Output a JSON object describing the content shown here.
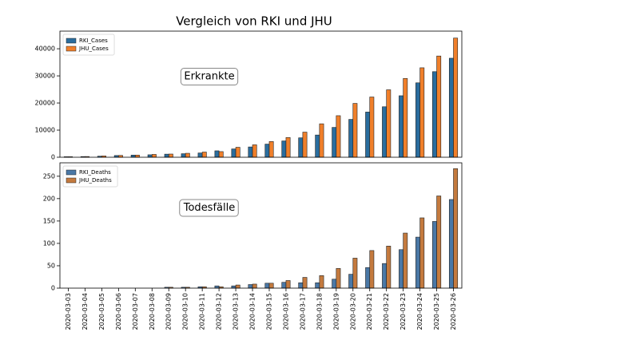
{
  "title": "Vergleich von RKI und JHU",
  "chart_data": [
    {
      "type": "bar",
      "annotation": "Erkrankte",
      "legend": "upper left",
      "ylim": [
        0,
        46500
      ],
      "yticks": [
        0,
        10000,
        20000,
        30000,
        40000
      ],
      "series": [
        {
          "name": "RKI_Cases",
          "color": "#2a6d9e",
          "values": [
            188,
            240,
            400,
            639,
            795,
            902,
            1139,
            1296,
            1567,
            2369,
            3062,
            3795,
            4838,
            6012,
            7156,
            8198,
            10999,
            13957,
            16662,
            18610,
            22672,
            27436,
            31554,
            36508
          ]
        },
        {
          "name": "JHU_Cases",
          "color": "#f07f2a",
          "values": [
            196,
            262,
            482,
            670,
            799,
            1040,
            1176,
            1457,
            1908,
            2078,
            3675,
            4585,
            5795,
            7272,
            9257,
            12327,
            15320,
            19848,
            22213,
            24873,
            29056,
            32986,
            37323,
            43938
          ]
        }
      ]
    },
    {
      "type": "bar",
      "annotation": "Todesfälle",
      "legend": "upper left",
      "categories": [
        "2020-03-03",
        "2020-03-04",
        "2020-03-05",
        "2020-03-06",
        "2020-03-07",
        "2020-03-08",
        "2020-03-09",
        "2020-03-10",
        "2020-03-11",
        "2020-03-12",
        "2020-03-13",
        "2020-03-14",
        "2020-03-15",
        "2020-03-16",
        "2020-03-17",
        "2020-03-18",
        "2020-03-19",
        "2020-03-20",
        "2020-03-21",
        "2020-03-22",
        "2020-03-23",
        "2020-03-24",
        "2020-03-25",
        "2020-03-26"
      ],
      "ylim": [
        0,
        280
      ],
      "yticks": [
        0,
        50,
        100,
        150,
        200,
        250
      ],
      "series": [
        {
          "name": "RKI_Deaths",
          "color": "#4a78a6",
          "values": [
            0,
            0,
            0,
            0,
            0,
            0,
            2,
            2,
            3,
            5,
            5,
            8,
            11,
            13,
            12,
            12,
            20,
            31,
            46,
            55,
            86,
            114,
            149,
            198
          ]
        },
        {
          "name": "JHU_Deaths",
          "color": "#c47a3e",
          "values": [
            0,
            0,
            0,
            0,
            0,
            0,
            2,
            2,
            3,
            3,
            7,
            9,
            11,
            17,
            24,
            28,
            44,
            67,
            84,
            94,
            123,
            157,
            206,
            267
          ]
        }
      ]
    }
  ]
}
